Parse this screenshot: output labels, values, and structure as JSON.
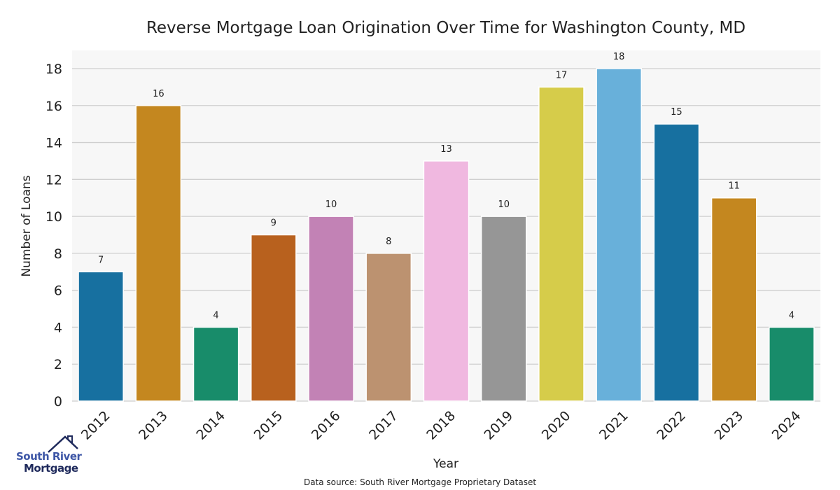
{
  "chart_data": {
    "type": "bar",
    "title": "Reverse Mortgage Loan Origination Over Time for Washington County, MD",
    "xlabel": "Year",
    "ylabel": "Number of Loans",
    "categories": [
      "2012",
      "2013",
      "2014",
      "2015",
      "2016",
      "2017",
      "2018",
      "2019",
      "2020",
      "2021",
      "2022",
      "2023",
      "2024"
    ],
    "values": [
      7,
      16,
      4,
      9,
      10,
      8,
      13,
      10,
      17,
      18,
      15,
      11,
      4
    ],
    "colors": [
      "#1770a0",
      "#c4871f",
      "#188c6a",
      "#b8611e",
      "#c282b5",
      "#bc9270",
      "#f0b8e0",
      "#969696",
      "#d6cc4a",
      "#68b0da",
      "#1770a0",
      "#c4871f",
      "#188c6a"
    ],
    "ylim": [
      0,
      19
    ],
    "yticks": [
      0,
      2,
      4,
      6,
      8,
      10,
      12,
      14,
      16,
      18
    ],
    "grid": true,
    "background": "#f7f7f7",
    "data_labels": true
  },
  "footer": {
    "source": "Data source: South River Mortgage Proprietary Dataset"
  },
  "logo": {
    "line1": "South River",
    "line2": "Mortgage"
  }
}
